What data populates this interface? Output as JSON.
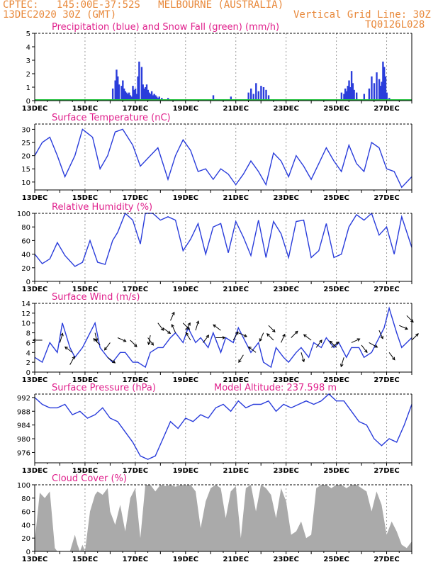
{
  "header": {
    "location_line": "CPTEC:   145:00E-37:52S   MELBOURNE (AUSTRALIA)",
    "date_line": "13DEC2020 30Z (GMT)",
    "grid_note": "Vertical Grid Line: 30Z",
    "code": "TQ0126L028"
  },
  "colors": {
    "series": "#2a3ddb",
    "snow": "#1fbf3a",
    "cloud": "#aaaaaa",
    "title": "#e0208c",
    "header": "#e8883a",
    "grid": "#9a9a9a"
  },
  "chart_data": [
    {
      "id": "precip",
      "type": "bar",
      "title": "Precipitation (blue) and Snow Fall (green) (mm/h)",
      "ylim": [
        0,
        5
      ],
      "yticks": [
        0,
        1,
        2,
        3,
        4,
        5
      ],
      "x_dates": [
        "13DEC",
        "15DEC",
        "17DEC",
        "19DEC",
        "21DEC",
        "23DEC",
        "25DEC",
        "27DEC"
      ],
      "x_range_days": [
        0,
        15
      ],
      "precip_t": [
        3.1,
        3.2,
        3.25,
        3.3,
        3.35,
        3.45,
        3.5,
        3.55,
        3.6,
        3.65,
        3.7,
        3.75,
        3.8,
        3.85,
        3.9,
        3.95,
        4.0,
        4.05,
        4.1,
        4.15,
        4.25,
        4.3,
        4.35,
        4.4,
        4.45,
        4.5,
        4.55,
        4.6,
        4.65,
        4.7,
        4.75,
        4.8,
        4.85,
        4.9,
        4.95,
        5.0,
        5.05,
        5.1,
        5.2,
        5.3,
        5.4,
        5.5,
        5.6,
        7.1,
        7.8,
        8.5,
        8.6,
        8.7,
        8.8,
        8.9,
        9.0,
        9.1,
        9.2,
        9.3,
        12.2,
        12.3,
        12.35,
        12.4,
        12.45,
        12.5,
        12.55,
        12.6,
        12.65,
        12.7,
        12.8,
        13.1,
        13.3,
        13.4,
        13.5,
        13.6,
        13.7,
        13.75,
        13.8,
        13.85,
        13.9,
        13.95,
        14.0,
        14.1
      ],
      "precip_v": [
        0.9,
        1.5,
        2.3,
        1.8,
        1.2,
        1.1,
        1.5,
        0.9,
        0.7,
        0.6,
        0.5,
        0.6,
        0.4,
        0.3,
        1.1,
        0.8,
        0.9,
        0.5,
        1.8,
        2.9,
        2.5,
        1.2,
        0.9,
        1.0,
        1.2,
        0.8,
        0.6,
        0.5,
        0.7,
        0.4,
        0.5,
        0.4,
        0.3,
        0.2,
        0.3,
        0.1,
        0.2,
        0.1,
        0.1,
        0.2,
        0.1,
        0.1,
        0.05,
        0.4,
        0.3,
        0.6,
        0.9,
        0.5,
        1.3,
        0.7,
        1.1,
        1.0,
        0.8,
        0.4,
        0.6,
        0.5,
        0.9,
        0.7,
        1.1,
        1.5,
        1.0,
        2.2,
        1.3,
        0.8,
        0.6,
        0.5,
        0.9,
        1.8,
        1.3,
        2.1,
        1.6,
        1.1,
        1.4,
        2.9,
        2.5,
        1.8,
        0.6,
        0.2
      ]
    },
    {
      "id": "temp",
      "type": "line",
      "title": "Surface Temperature (nC)",
      "ylim": [
        7,
        32
      ],
      "yticks": [
        10,
        15,
        20,
        25,
        30
      ],
      "x_range_days": [
        0,
        15
      ],
      "t": [
        0,
        0.3,
        0.6,
        0.9,
        1.2,
        1.6,
        1.9,
        2.3,
        2.6,
        2.9,
        3.2,
        3.5,
        3.9,
        4.2,
        4.6,
        4.9,
        5.3,
        5.6,
        5.9,
        6.2,
        6.5,
        6.8,
        7.1,
        7.4,
        7.7,
        8.0,
        8.3,
        8.6,
        8.9,
        9.2,
        9.5,
        9.8,
        10.1,
        10.4,
        10.7,
        11.0,
        11.3,
        11.6,
        11.9,
        12.2,
        12.5,
        12.8,
        13.1,
        13.4,
        13.7,
        14.0,
        14.3,
        14.6,
        15.0
      ],
      "values": [
        20,
        25,
        27,
        20,
        12,
        20,
        30,
        27,
        15,
        20,
        29,
        30,
        24,
        16,
        20,
        23,
        11,
        20,
        26,
        22,
        14,
        15,
        11,
        15,
        13,
        9,
        13,
        18,
        14,
        9,
        21,
        18,
        12,
        20,
        16,
        11,
        17,
        23,
        18,
        14,
        24,
        17,
        14,
        25,
        23,
        15,
        14,
        8,
        12
      ]
    },
    {
      "id": "rh",
      "type": "line",
      "title": "Relative Humidity (%)",
      "ylim": [
        0,
        100
      ],
      "yticks": [
        0,
        20,
        40,
        60,
        80,
        100
      ],
      "x_range_days": [
        0,
        15
      ],
      "t": [
        0,
        0.3,
        0.6,
        0.9,
        1.2,
        1.6,
        1.9,
        2.2,
        2.5,
        2.8,
        3.1,
        3.3,
        3.6,
        3.9,
        4.2,
        4.4,
        4.7,
        5.0,
        5.3,
        5.6,
        5.9,
        6.2,
        6.5,
        6.8,
        7.1,
        7.4,
        7.7,
        8.0,
        8.3,
        8.6,
        8.9,
        9.2,
        9.5,
        9.8,
        10.1,
        10.4,
        10.7,
        11.0,
        11.3,
        11.6,
        11.9,
        12.2,
        12.5,
        12.8,
        13.1,
        13.4,
        13.7,
        14.0,
        14.3,
        14.6,
        15.0
      ],
      "values": [
        40,
        26,
        33,
        57,
        38,
        22,
        28,
        60,
        28,
        25,
        60,
        72,
        100,
        90,
        55,
        100,
        100,
        90,
        95,
        90,
        45,
        62,
        85,
        40,
        80,
        85,
        42,
        88,
        65,
        38,
        90,
        35,
        88,
        70,
        35,
        88,
        90,
        35,
        45,
        85,
        35,
        40,
        80,
        98,
        90,
        100,
        68,
        80,
        40,
        95,
        50
      ]
    },
    {
      "id": "wind",
      "type": "line",
      "title": "Surface Wind (m/s)",
      "ylim": [
        0,
        14
      ],
      "yticks": [
        0,
        2,
        4,
        6,
        8,
        10,
        12,
        14
      ],
      "x_range_days": [
        0,
        15
      ],
      "t": [
        0,
        0.3,
        0.6,
        0.9,
        1.1,
        1.4,
        1.6,
        1.9,
        2.1,
        2.4,
        2.6,
        2.9,
        3.1,
        3.4,
        3.6,
        3.9,
        4.1,
        4.4,
        4.6,
        4.9,
        5.1,
        5.4,
        5.6,
        5.9,
        6.1,
        6.4,
        6.6,
        6.9,
        7.1,
        7.4,
        7.6,
        7.9,
        8.1,
        8.4,
        8.6,
        8.9,
        9.1,
        9.4,
        9.6,
        9.9,
        10.1,
        10.4,
        10.6,
        10.9,
        11.1,
        11.4,
        11.6,
        11.9,
        12.1,
        12.4,
        12.6,
        12.9,
        13.1,
        13.4,
        13.6,
        13.9,
        14.1,
        14.4,
        14.6,
        15.0
      ],
      "values": [
        3,
        2,
        6,
        4,
        10,
        5,
        3,
        5,
        7,
        10,
        5,
        3,
        2,
        4,
        4,
        2,
        2,
        1,
        4,
        5,
        5,
        7,
        8,
        6,
        9,
        6,
        7,
        5,
        8,
        4,
        7,
        6,
        9,
        6,
        4,
        6,
        2,
        1,
        5,
        3,
        2,
        4,
        5,
        3,
        6,
        5,
        7,
        5,
        6,
        3,
        5,
        5,
        3,
        4,
        6,
        9,
        13,
        8,
        5,
        7
      ],
      "arrows_t": [
        0.3,
        1.0,
        1.4,
        1.5,
        2.4,
        2.6,
        2.9,
        3.0,
        3.3,
        3.8,
        4.5,
        4.6,
        4.9,
        5.1,
        5.4,
        5.6,
        5.9,
        6.0,
        6.2,
        6.4,
        6.7,
        7.2,
        7.4,
        7.9,
        8.1,
        8.3,
        8.8,
        9.1,
        9.3,
        9.5,
        9.8,
        10.2,
        10.6,
        11.0,
        11.2,
        11.8,
        12.0,
        12.3,
        12.6,
        13.0,
        13.3,
        13.7,
        14.1,
        14.5,
        14.8,
        15.0
      ],
      "arrows_v": [
        6.5,
        6.0,
        1.5,
        4.0,
        8.0,
        5.5,
        3.0,
        6.0,
        7.0,
        6.5,
        7.0,
        7.5,
        10.0,
        9.0,
        10.5,
        8.0,
        10.0,
        8.5,
        6.5,
        8.5,
        6.0,
        7.0,
        8.5,
        6.5,
        8.0,
        3.5,
        4.0,
        8.0,
        9.5,
        6.5,
        6.0,
        7.0,
        4.0,
        6.5,
        5.0,
        5.0,
        5.0,
        3.0,
        6.0,
        5.5,
        6.0,
        8.5,
        4.0,
        9.5,
        11.5,
        6.5
      ],
      "arrows_dx": [
        -1,
        0.3,
        0.5,
        -0.8,
        0.2,
        -0.7,
        0.8,
        -0.6,
        0.9,
        0.7,
        0.6,
        -0.2,
        0.6,
        0.8,
        0.4,
        -0.4,
        0.7,
        0.5,
        -0.5,
        0.3,
        0.6,
        1,
        -0.8,
        0.5,
        0.9,
        -0.5,
        -0.8,
        -0.4,
        0.7,
        -0.7,
        0.4,
        0.7,
        0.3,
        -0.8,
        0.6,
        0.8,
        -0.7,
        -0.3,
        0.9,
        0.6,
        0.9,
        0.4,
        0.6,
        0.9,
        0.7,
        0.7
      ],
      "arrows_dy": [
        0,
        -1,
        -0.9,
        -0.6,
        0.9,
        -0.7,
        0.6,
        0.8,
        0.4,
        0.7,
        0.8,
        1,
        0.8,
        0.6,
        -0.9,
        -0.9,
        0.7,
        -0.8,
        -0.8,
        -1,
        -0.8,
        0,
        -0.6,
        -0.9,
        0.4,
        0.8,
        -0.6,
        0.9,
        0.7,
        -0.7,
        -0.9,
        -0.7,
        1,
        -0.6,
        -0.8,
        -0.6,
        -0.7,
        1,
        -0.4,
        0.8,
        0.5,
        0.9,
        0.8,
        0.4,
        0.7,
        -0.7
      ]
    },
    {
      "id": "pressure",
      "type": "line",
      "title": "Surface Pressure (hPa)",
      "model_altitude": "Model Altitude: 237.598  m",
      "ylim": [
        973,
        993
      ],
      "yticks": [
        976,
        980,
        984,
        988,
        992
      ],
      "x_range_days": [
        0,
        15
      ],
      "t": [
        0,
        0.3,
        0.6,
        0.9,
        1.2,
        1.5,
        1.8,
        2.1,
        2.4,
        2.7,
        3.0,
        3.3,
        3.6,
        3.9,
        4.2,
        4.5,
        4.8,
        5.1,
        5.4,
        5.7,
        6.0,
        6.3,
        6.6,
        6.9,
        7.2,
        7.5,
        7.8,
        8.1,
        8.4,
        8.7,
        9.0,
        9.3,
        9.6,
        9.9,
        10.2,
        10.5,
        10.8,
        11.1,
        11.4,
        11.7,
        12.0,
        12.3,
        12.6,
        12.9,
        13.2,
        13.5,
        13.8,
        14.1,
        14.4,
        14.7,
        15.0
      ],
      "values": [
        992,
        990,
        989,
        989,
        990,
        987,
        988,
        986,
        987,
        989,
        986,
        985,
        982,
        979,
        975,
        974,
        975,
        980,
        985,
        983,
        986,
        985,
        987,
        986,
        989,
        990,
        988,
        991,
        989,
        990,
        990,
        991,
        988,
        990,
        989,
        990,
        991,
        990,
        991,
        993,
        991,
        991,
        988,
        985,
        984,
        980,
        978,
        980,
        979,
        984,
        990
      ]
    },
    {
      "id": "cloud",
      "type": "area",
      "title": "Cloud Cover (%)",
      "ylim": [
        0,
        100
      ],
      "yticks": [
        0,
        20,
        40,
        60,
        80,
        100
      ],
      "x_range_days": [
        0,
        15
      ],
      "t": [
        0,
        0.2,
        0.4,
        0.6,
        0.8,
        0.9,
        1.0,
        1.2,
        1.4,
        1.6,
        1.7,
        1.8,
        1.9,
        2.0,
        2.2,
        2.4,
        2.5,
        2.7,
        2.9,
        3.0,
        3.2,
        3.4,
        3.6,
        3.8,
        4.0,
        4.2,
        4.4,
        4.6,
        4.8,
        5.0,
        5.2,
        5.4,
        5.6,
        5.8,
        6.0,
        6.2,
        6.4,
        6.6,
        6.8,
        7.0,
        7.2,
        7.4,
        7.6,
        7.8,
        8.0,
        8.2,
        8.4,
        8.6,
        8.8,
        9.0,
        9.2,
        9.4,
        9.6,
        9.8,
        10.0,
        10.2,
        10.4,
        10.6,
        10.8,
        11.0,
        11.2,
        11.4,
        11.6,
        11.8,
        12.0,
        12.2,
        12.4,
        12.6,
        12.8,
        13.0,
        13.2,
        13.4,
        13.6,
        13.8,
        14.0,
        14.2,
        14.4,
        14.6,
        14.8,
        15.0
      ],
      "values": [
        15,
        88,
        80,
        90,
        5,
        0,
        0,
        0,
        0,
        25,
        10,
        0,
        10,
        0,
        60,
        85,
        90,
        85,
        95,
        60,
        40,
        70,
        30,
        80,
        95,
        20,
        100,
        100,
        90,
        100,
        98,
        100,
        97,
        100,
        99,
        100,
        90,
        35,
        75,
        95,
        100,
        95,
        50,
        90,
        98,
        20,
        95,
        100,
        60,
        100,
        95,
        85,
        50,
        95,
        75,
        25,
        30,
        45,
        20,
        25,
        95,
        100,
        100,
        95,
        100,
        100,
        95,
        100,
        100,
        95,
        90,
        60,
        90,
        70,
        25,
        45,
        30,
        10,
        5,
        15
      ]
    }
  ]
}
